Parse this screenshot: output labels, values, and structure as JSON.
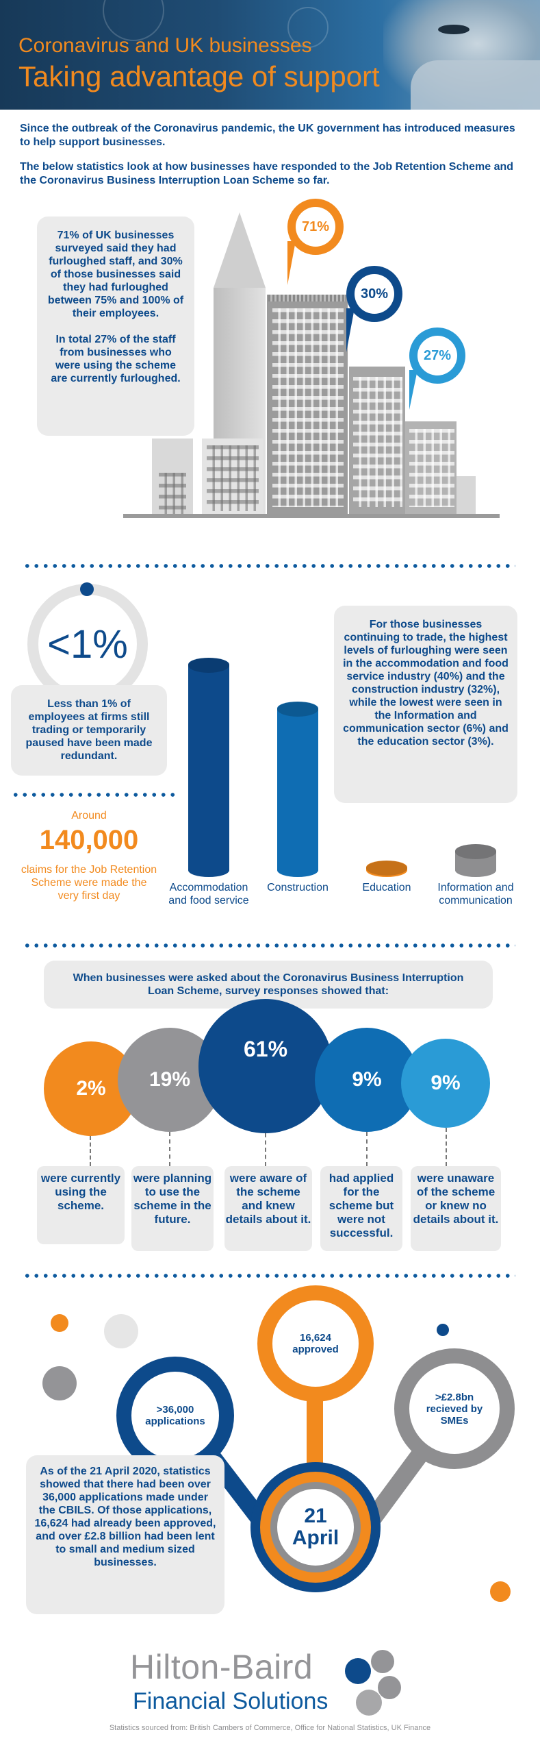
{
  "header": {
    "title_line_1": "Coronavirus and UK businesses",
    "title_line_2": "Taking advantage of support"
  },
  "intro": {
    "paragraph_1": "Since the outbreak of the Coronavirus pandemic, the UK government has introduced measures to help support businesses.",
    "paragraph_2": "The below statistics look at how businesses have responded to the Job Retention Scheme and the Coronavirus Business Interruption Loan Scheme so far."
  },
  "furlough": {
    "text_1": "71% of UK businesses surveyed said they had furloughed staff, and 30% of those businesses said they had furloughed between 75% and 100% of their employees.",
    "text_2": "In total 27% of the staff from businesses who were using the scheme are currently furloughed.",
    "pins": [
      {
        "label": "71%",
        "color": "#f28a1e"
      },
      {
        "label": "30%",
        "color": "#0d4a8b"
      },
      {
        "label": "27%",
        "color": "#2a9bd6"
      }
    ]
  },
  "redundancy": {
    "big_label": "<1%",
    "text": "Less than 1% of employees at firms still trading or temporarily paused have been made redundant."
  },
  "claims": {
    "prefix": "Around",
    "number": "140,000",
    "text": "claims for the Job Retention Scheme were made the very first day"
  },
  "sectors": {
    "text": "For those businesses continuing to trade, the highest levels of furloughing were seen in the accommodation and food service industry (40%) and the construction industry (32%), while the lowest were seen in the Information and communication sector (6%) and the education sector (3%)."
  },
  "chart_data": {
    "type": "bar",
    "title": "",
    "xlabel": "",
    "ylabel": "",
    "categories": [
      "Accommodation and food service",
      "Construction",
      "Education",
      "Information and communication"
    ],
    "values": [
      40,
      32,
      3,
      6
    ],
    "unit": "%",
    "colors": [
      "#0d4a8b",
      "#0f6db3",
      "#f28a1e",
      "#8e8e90"
    ],
    "ylim": [
      0,
      40
    ],
    "grid": false
  },
  "cbils": {
    "intro": "When businesses were asked about the Coronavirus Business Interruption Loan Scheme, survey responses showed that:",
    "responses": [
      {
        "value": "2%",
        "text": "were currently using the scheme.",
        "color": "#f28a1e"
      },
      {
        "value": "19%",
        "text": "were planning to use the scheme in the future.",
        "color": "#949497"
      },
      {
        "value": "61%",
        "text": "were aware of the scheme and knew details about it.",
        "color": "#0d4a8b"
      },
      {
        "value": "9%",
        "text": "had applied for the scheme but were not successful.",
        "color": "#0f6db3"
      },
      {
        "value": "9%",
        "text": "were unaware of the scheme or knew no details about it.",
        "color": "#2a9bd6"
      }
    ]
  },
  "april": {
    "applications": ">36,000 applications",
    "approved": "16,624 approved",
    "received": ">£2.8bn recieved by SMEs",
    "day": "21",
    "month": "April",
    "text": "As of the 21 April 2020, statistics showed that there had been over 36,000 applications made under the CBILS. Of those applications, 16,624 had already been approved, and over £2.8 billion had been lent to small and medium sized businesses."
  },
  "footer": {
    "brand_line_1": "Hilton-Baird",
    "brand_line_2": "Financial Solutions",
    "sources": "Statistics sourced from: British Cambers of Commerce, Office for National Statistics, UK Finance"
  }
}
